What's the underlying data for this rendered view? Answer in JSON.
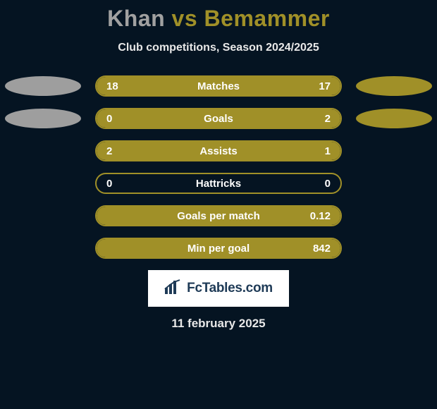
{
  "title": {
    "player1": "Khan",
    "vs": "vs",
    "player2": "Bemammer",
    "player1_color": "#a1a1a1",
    "player2_color": "#a09028"
  },
  "subtitle": "Club competitions, Season 2024/2025",
  "theme": {
    "background": "#051422",
    "pill_border": "#a09028",
    "pill_fill": "#a09028",
    "text_color": "#ffffff",
    "ellipse_left_color": "#9e9e9e",
    "ellipse_right_color": "#a09028",
    "title_fontsize": 32,
    "subtitle_fontsize": 16,
    "label_fontsize": 15
  },
  "rows": [
    {
      "label": "Matches",
      "left": "18",
      "right": "17",
      "left_pct": 51,
      "right_pct": 49,
      "ellipses": true
    },
    {
      "label": "Goals",
      "left": "0",
      "right": "2",
      "left_pct": 0,
      "right_pct": 100,
      "ellipses": true
    },
    {
      "label": "Assists",
      "left": "2",
      "right": "1",
      "left_pct": 67,
      "right_pct": 33,
      "ellipses": false
    },
    {
      "label": "Hattricks",
      "left": "0",
      "right": "0",
      "left_pct": 0,
      "right_pct": 0,
      "ellipses": false
    },
    {
      "label": "Goals per match",
      "left": "",
      "right": "0.12",
      "left_pct": 0,
      "right_pct": 100,
      "ellipses": false
    },
    {
      "label": "Min per goal",
      "left": "",
      "right": "842",
      "left_pct": 0,
      "right_pct": 100,
      "ellipses": false
    }
  ],
  "logo": {
    "text": "FcTables.com"
  },
  "date": "11 february 2025"
}
